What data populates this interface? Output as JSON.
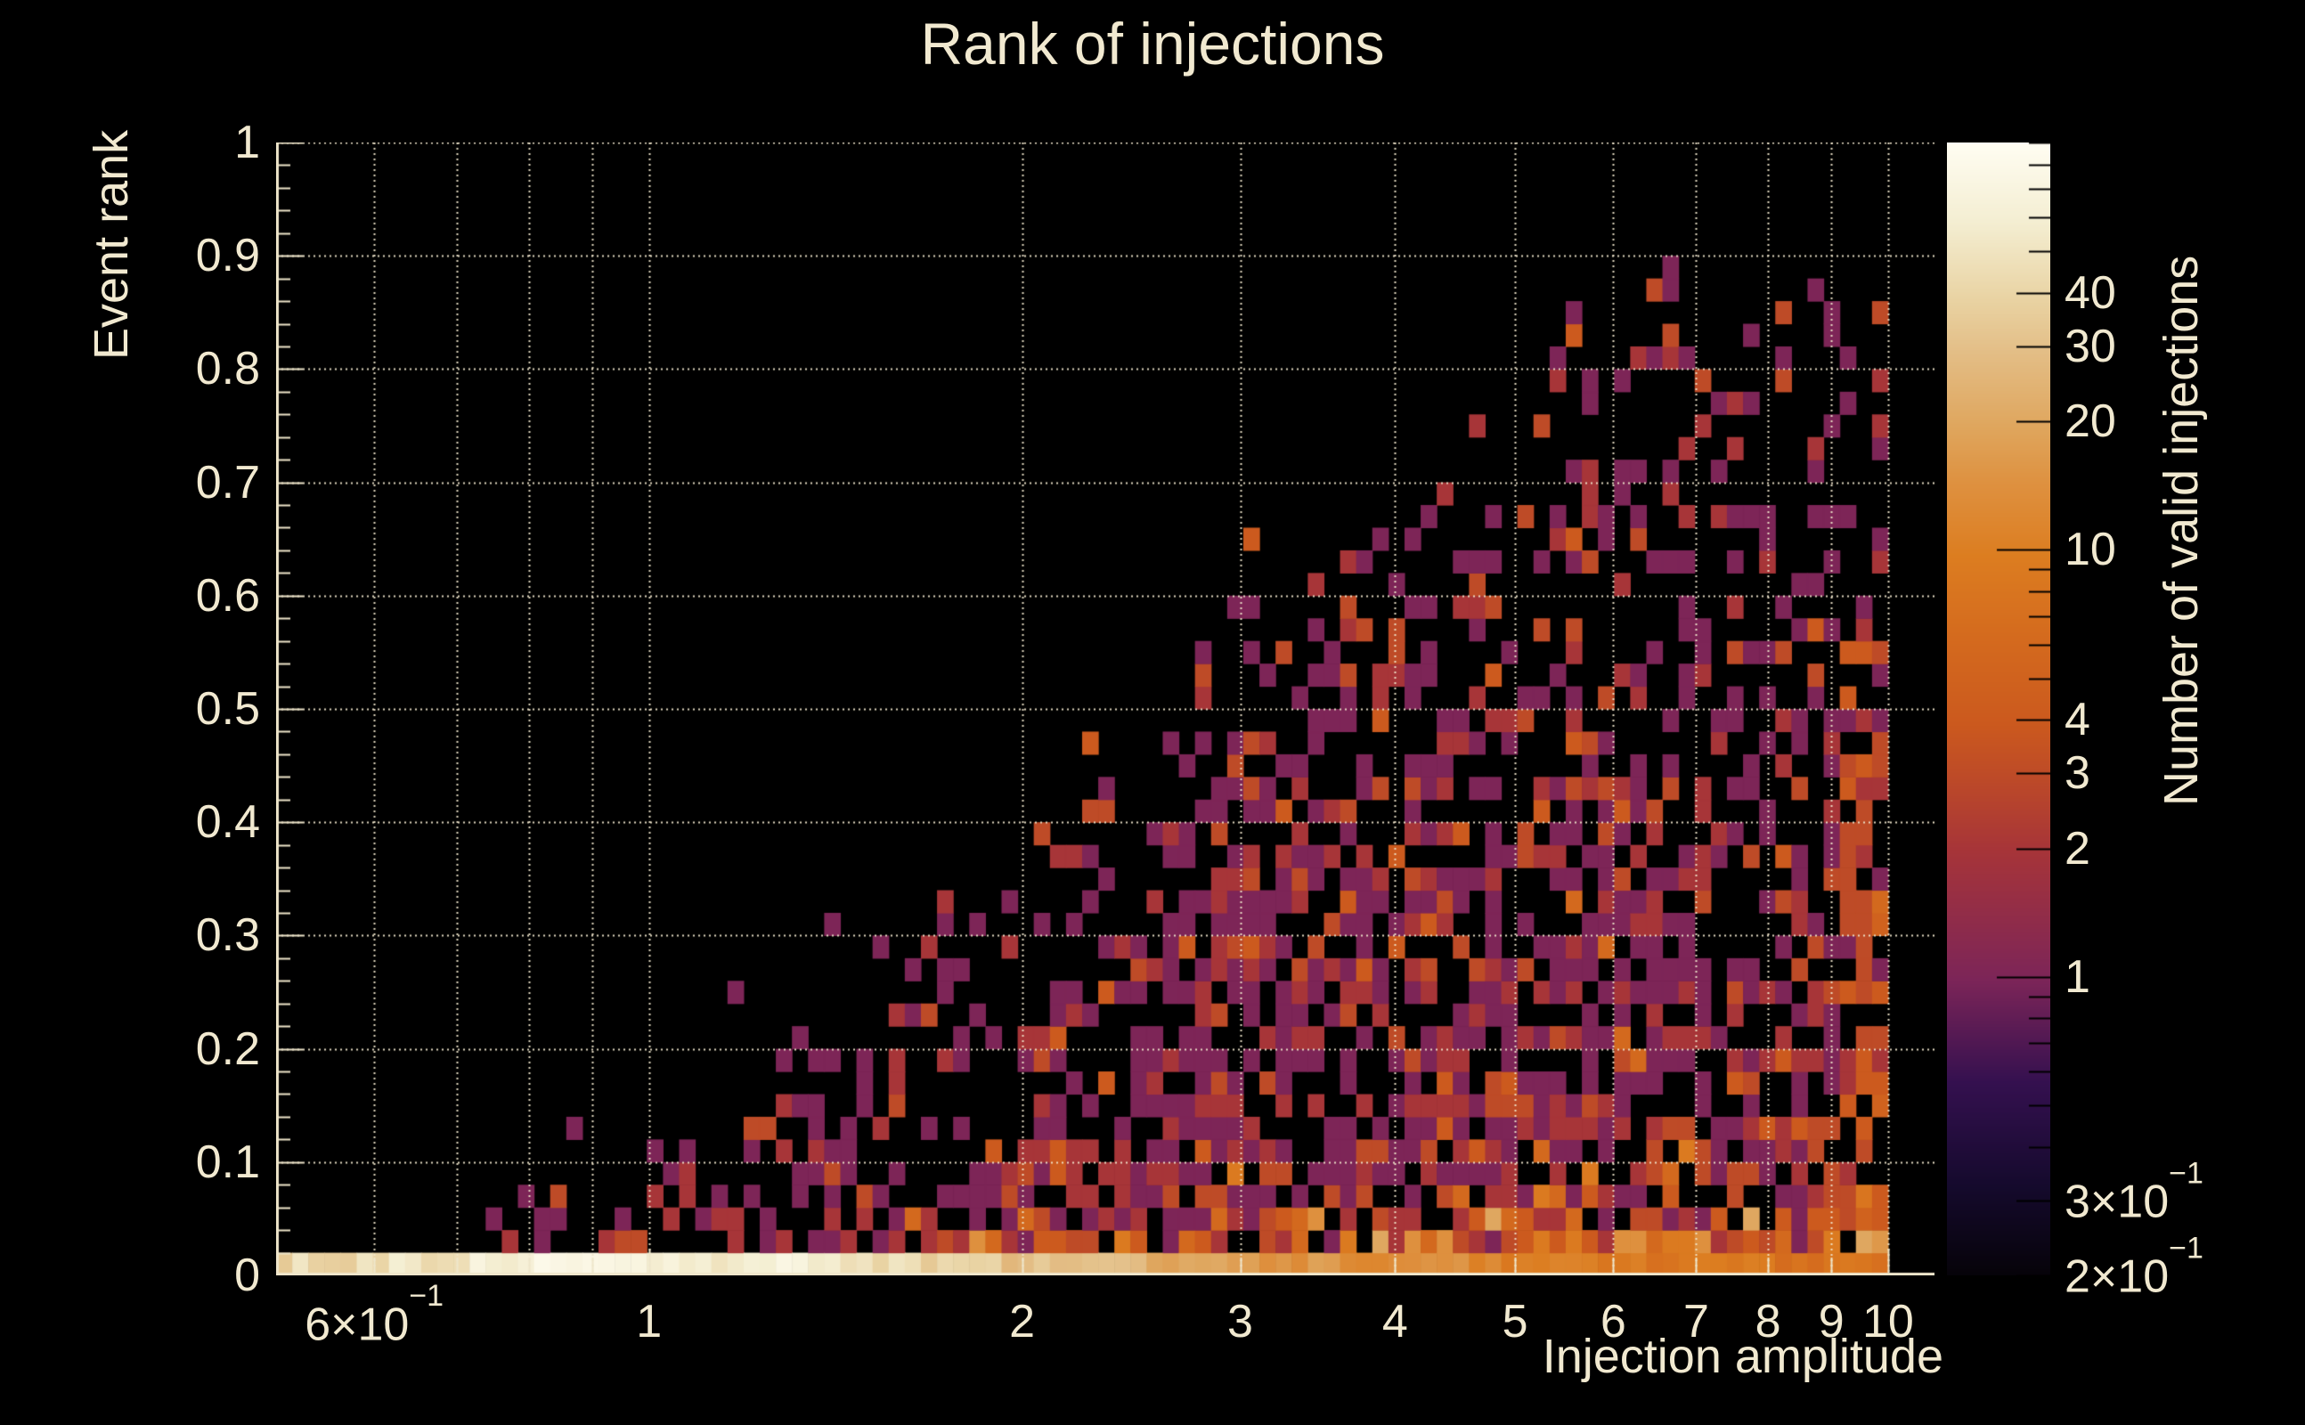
{
  "colors": {
    "background": "#000000",
    "text": "#f1e9d0",
    "grid": "#efe6cb",
    "axis": "#efe6cb",
    "colorbar_tick": "#000000"
  },
  "chart_data": {
    "type": "heatmap",
    "title": "Rank of injections",
    "xlabel": "Injection amplitude",
    "ylabel": "Event rank",
    "zlabel": "Number of valid injections",
    "x_scale": "log",
    "x_range": [
      0.5,
      10.9
    ],
    "y_scale": "linear",
    "y_range": [
      0,
      1
    ],
    "z_scale": "log",
    "z_range": [
      0.2,
      90
    ],
    "grid": true,
    "x_tick_labels": [
      {
        "v": 0.6,
        "text": "6×10",
        "sup": "−1"
      },
      {
        "v": 1,
        "text": "1"
      },
      {
        "v": 2,
        "text": "2"
      },
      {
        "v": 3,
        "text": "3"
      },
      {
        "v": 4,
        "text": "4"
      },
      {
        "v": 5,
        "text": "5"
      },
      {
        "v": 6,
        "text": "6"
      },
      {
        "v": 7,
        "text": "7"
      },
      {
        "v": 8,
        "text": "8"
      },
      {
        "v": 9,
        "text": "9"
      },
      {
        "v": 10,
        "text": "10"
      }
    ],
    "x_minor_ticks": [
      0.6,
      0.7,
      0.8,
      0.9,
      1,
      2,
      3,
      4,
      5,
      6,
      7,
      8,
      9,
      10
    ],
    "y_tick_labels": [
      {
        "v": 0,
        "text": "0"
      },
      {
        "v": 0.1,
        "text": "0.1"
      },
      {
        "v": 0.2,
        "text": "0.2"
      },
      {
        "v": 0.3,
        "text": "0.3"
      },
      {
        "v": 0.4,
        "text": "0.4"
      },
      {
        "v": 0.5,
        "text": "0.5"
      },
      {
        "v": 0.6,
        "text": "0.6"
      },
      {
        "v": 0.7,
        "text": "0.7"
      },
      {
        "v": 0.8,
        "text": "0.8"
      },
      {
        "v": 0.9,
        "text": "0.9"
      },
      {
        "v": 1,
        "text": "1"
      }
    ],
    "y_minor_step": 0.02,
    "colorbar": {
      "tick_values": [
        0.2,
        0.3,
        0.4,
        0.5,
        0.6,
        0.7,
        0.8,
        0.9,
        1,
        2,
        3,
        4,
        5,
        6,
        7,
        8,
        9,
        10,
        20,
        30,
        40,
        50,
        60,
        70,
        80,
        90
      ],
      "decade_ticks": [
        1,
        10
      ],
      "labels": [
        {
          "v": 40,
          "text": "40"
        },
        {
          "v": 30,
          "text": "30"
        },
        {
          "v": 20,
          "text": "20"
        },
        {
          "v": 10,
          "text": "10"
        },
        {
          "v": 4,
          "text": "4"
        },
        {
          "v": 3,
          "text": "3"
        },
        {
          "v": 2,
          "text": "2"
        },
        {
          "v": 1,
          "text": "1"
        },
        {
          "v": 0.3,
          "text": "3×10",
          "sup": "−1"
        },
        {
          "v": 0.2,
          "text": "2×10",
          "sup": "−1"
        }
      ]
    },
    "palette": [
      [
        0.0,
        "#060309"
      ],
      [
        0.08,
        "#150a2d"
      ],
      [
        0.17,
        "#34104f"
      ],
      [
        0.261,
        "#7c2558"
      ],
      [
        0.374,
        "#a63439"
      ],
      [
        0.439,
        "#bd4a28"
      ],
      [
        0.486,
        "#cb591e"
      ],
      [
        0.562,
        "#d46a1e"
      ],
      [
        0.635,
        "#dc7d20"
      ],
      [
        0.7,
        "#de9140"
      ],
      [
        0.747,
        "#dfa55c"
      ],
      [
        0.813,
        "#e3bd85"
      ],
      [
        0.862,
        "#e9d3a3"
      ],
      [
        0.93,
        "#f4eed2"
      ],
      [
        1.0,
        "#fffdf2"
      ]
    ],
    "bins": {
      "nx": 100,
      "ny": 50,
      "x_data_range": [
        0.5,
        10.0
      ],
      "seed": 1337,
      "envelope": [
        [
          0.5,
          0.035
        ],
        [
          0.62,
          0.05
        ],
        [
          0.75,
          0.07
        ],
        [
          0.9,
          0.1
        ],
        [
          1.05,
          0.13
        ],
        [
          1.25,
          0.2
        ],
        [
          1.5,
          0.29
        ],
        [
          1.8,
          0.36
        ],
        [
          2.1,
          0.47
        ],
        [
          2.45,
          0.545
        ],
        [
          2.8,
          0.61
        ],
        [
          3.1,
          0.66
        ],
        [
          3.5,
          0.635
        ],
        [
          4.0,
          0.69
        ],
        [
          4.6,
          0.77
        ],
        [
          5.2,
          0.83
        ],
        [
          6.0,
          0.885
        ],
        [
          7.0,
          0.9
        ],
        [
          8.2,
          0.88
        ],
        [
          10.0,
          0.9
        ]
      ],
      "fill_shape": [
        [
          0,
          0.92
        ],
        [
          0.2,
          0.8
        ],
        [
          0.4,
          0.67
        ],
        [
          0.6,
          0.52
        ],
        [
          0.8,
          0.37
        ],
        [
          0.92,
          0.22
        ],
        [
          1,
          0.13
        ]
      ],
      "amp_density": [
        [
          0.5,
          0.1
        ],
        [
          0.65,
          0.3
        ],
        [
          0.9,
          0.38
        ],
        [
          1.2,
          0.5
        ],
        [
          1.6,
          0.63
        ],
        [
          2.0,
          0.72
        ],
        [
          2.6,
          0.78
        ],
        [
          3.5,
          0.84
        ],
        [
          6.0,
          0.82
        ],
        [
          10.0,
          0.8
        ]
      ],
      "bottom_row": [
        [
          0.5,
          38
        ],
        [
          0.7,
          55
        ],
        [
          0.9,
          70
        ],
        [
          1.3,
          60
        ],
        [
          1.7,
          38
        ],
        [
          2.2,
          26
        ],
        [
          3.0,
          17
        ],
        [
          4.0,
          13
        ],
        [
          5.5,
          10
        ],
        [
          7.0,
          8.5
        ],
        [
          10.0,
          7
        ]
      ],
      "boosts": [
        {
          "rmax": 0.055,
          "amin": 1.8,
          "p": 0.85
        },
        {
          "rmax": 0.1,
          "amin": 2.2,
          "p": 0.72
        }
      ],
      "value_zones": [
        {
          "rmax": 0.06,
          "amin": 1.6,
          "weights": [
            [
              1,
              16
            ],
            [
              2,
              26
            ],
            [
              3,
              20
            ],
            [
              4,
              13
            ],
            [
              6,
              11
            ],
            [
              9,
              8
            ],
            [
              14,
              4
            ],
            [
              20,
              2
            ]
          ]
        },
        {
          "rmax": 0.06,
          "amin": 0,
          "weights": [
            [
              1,
              45
            ],
            [
              2,
              33
            ],
            [
              3,
              16
            ],
            [
              4,
              6
            ]
          ]
        },
        {
          "rmax": 0.13,
          "amin": 1.6,
          "weights": [
            [
              1,
              40
            ],
            [
              2,
              28
            ],
            [
              3,
              15
            ],
            [
              4,
              9
            ],
            [
              6,
              5
            ],
            [
              9,
              3
            ]
          ]
        },
        {
          "rmax": 0.13,
          "amin": 0,
          "weights": [
            [
              1,
              58
            ],
            [
              2,
              28
            ],
            [
              3,
              14
            ]
          ]
        },
        {
          "rmax": 0.35,
          "amin": 0,
          "weights": [
            [
              1,
              58
            ],
            [
              2,
              24
            ],
            [
              3,
              12
            ],
            [
              4,
              5
            ],
            [
              6,
              1
            ]
          ]
        },
        {
          "rmax": 1.01,
          "amin": 0,
          "weights": [
            [
              1,
              56
            ],
            [
              2,
              25
            ],
            [
              3,
              13
            ],
            [
              4,
              5
            ],
            [
              6,
              1
            ]
          ]
        }
      ],
      "right_strip": {
        "amin": 9.2,
        "rmax": 0.57,
        "pmin": 0.6,
        "boost_prob": 0.55,
        "boost_add": 2
      },
      "outliers": [
        [
          1.42,
          0.315
        ],
        [
          0.87,
          0.135
        ],
        [
          1.18,
          0.245
        ]
      ]
    }
  }
}
